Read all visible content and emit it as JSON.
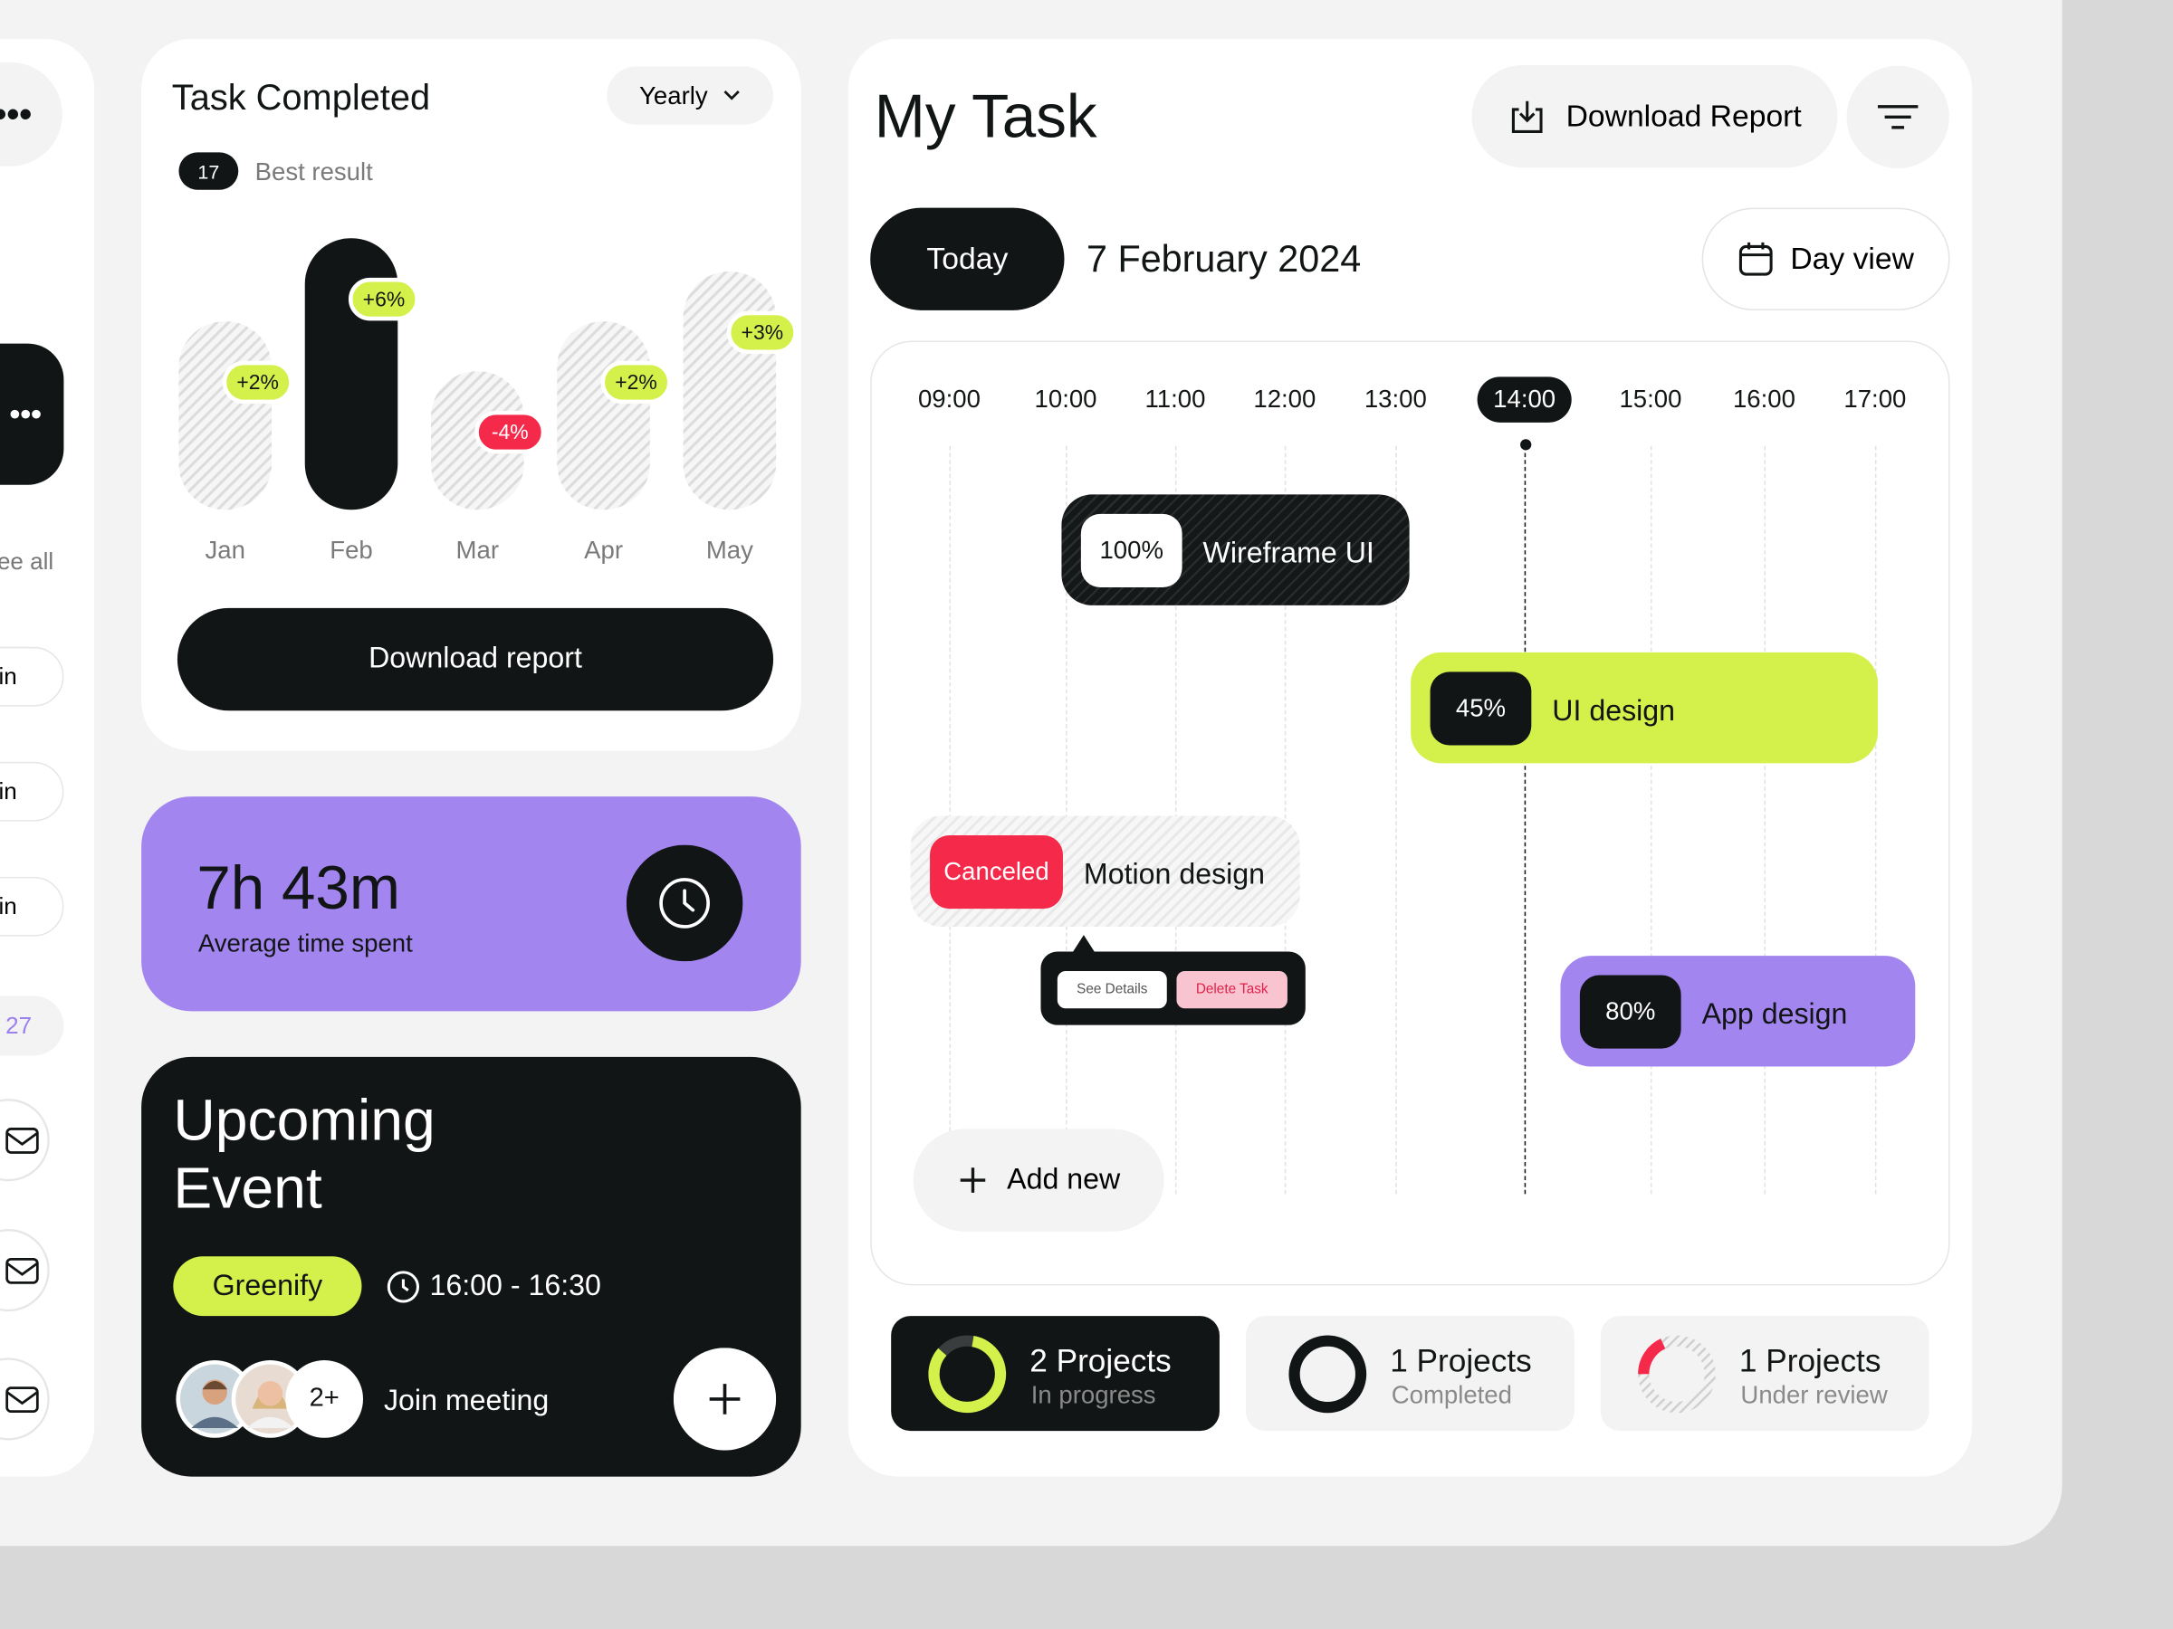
{
  "sidebar": {
    "see_all": "ee all",
    "items": [
      "in",
      "in",
      "in",
      "27"
    ]
  },
  "task_completed": {
    "title": "Task Completed",
    "filter": "Yearly",
    "best_count": 17,
    "best_label": "Best result",
    "chart": {
      "type": "bar",
      "categories": [
        "Jan",
        "Feb",
        "Mar",
        "Apr",
        "May"
      ],
      "values": [
        68,
        98,
        50,
        68,
        86
      ],
      "ylim": [
        0,
        100
      ],
      "changes": [
        2,
        6,
        -4,
        2,
        3
      ],
      "change_labels": [
        "+2%",
        "+6%",
        "-4%",
        "+2%",
        "+3%"
      ]
    },
    "button": "Download report"
  },
  "average_time": {
    "value": "7h 43m",
    "label": "Average time spent"
  },
  "upcoming_event": {
    "title_lines": [
      "Upcoming",
      "Event"
    ],
    "tag": "Greenify",
    "time": "16:00 - 16:30",
    "extra_attendees": "2+",
    "action": "Join meeting"
  },
  "my_task": {
    "title": "My Task",
    "download": "Download Report",
    "today": "Today",
    "date": "7 February 2024",
    "view": "Day view",
    "hours": [
      "09:00",
      "10:00",
      "11:00",
      "12:00",
      "13:00",
      "14:00",
      "15:00",
      "16:00",
      "17:00"
    ],
    "tasks": [
      {
        "badge": "100%",
        "name": "Wireframe UI"
      },
      {
        "badge": "45%",
        "name": "UI design"
      },
      {
        "badge": "Canceled",
        "name": "Motion design"
      },
      {
        "badge": "80%",
        "name": "App design"
      }
    ],
    "tooltip": [
      "See Details",
      "Delete Task"
    ],
    "add_new": "Add new",
    "stats": [
      {
        "count": "2 Projects",
        "status": "In progress"
      },
      {
        "count": "1 Projects",
        "status": "Completed"
      },
      {
        "count": "1 Projects",
        "status": "Under review"
      }
    ]
  }
}
